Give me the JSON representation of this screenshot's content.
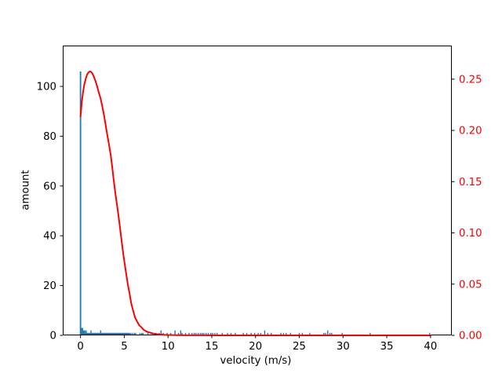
{
  "figure": {
    "background": "#ffffff"
  },
  "chart_data": {
    "type": "bar",
    "subtype": "histogram-with-fit-line",
    "title": "",
    "xlabel": "velocity (m/s)",
    "ylabel_left": "amount",
    "ylabel_right": "",
    "grid": false,
    "legend": null,
    "xlim": [
      -2.03,
      42.43
    ],
    "ylim_left": [
      0,
      116.4
    ],
    "ylim_right": [
      0,
      0.2828
    ],
    "xticks": [
      {
        "v": 0,
        "label": "0"
      },
      {
        "v": 5,
        "label": "5"
      },
      {
        "v": 10,
        "label": "10"
      },
      {
        "v": 15,
        "label": "15"
      },
      {
        "v": 20,
        "label": "20"
      },
      {
        "v": 25,
        "label": "25"
      },
      {
        "v": 30,
        "label": "30"
      },
      {
        "v": 35,
        "label": "35"
      },
      {
        "v": 40,
        "label": "40"
      }
    ],
    "yticks_left": [
      {
        "v": 0,
        "label": "0"
      },
      {
        "v": 20,
        "label": "20"
      },
      {
        "v": 40,
        "label": "40"
      },
      {
        "v": 60,
        "label": "60"
      },
      {
        "v": 80,
        "label": "80"
      },
      {
        "v": 100,
        "label": "100"
      }
    ],
    "yticks_right": [
      {
        "v": 0.0,
        "label": "0.00"
      },
      {
        "v": 0.05,
        "label": "0.05"
      },
      {
        "v": 0.1,
        "label": "0.10"
      },
      {
        "v": 0.15,
        "label": "0.15"
      },
      {
        "v": 0.2,
        "label": "0.20"
      },
      {
        "v": 0.25,
        "label": "0.25"
      }
    ],
    "colors": {
      "bars": "#1f77b4",
      "curve": "#ff0000",
      "right_tick_labels": "#ff0000",
      "left_tick_labels": "#000000",
      "spines": "#000000"
    },
    "histogram": {
      "axis": "left",
      "bin_width": 0.125,
      "spike": {
        "x": 0,
        "h": 106
      },
      "band": {
        "start": 0.1,
        "end": 5.6,
        "step": 0.1,
        "h": 1
      },
      "extras": [
        [
          0.12,
          3
        ],
        [
          0.24,
          3
        ],
        [
          0.36,
          2
        ],
        [
          0.5,
          2
        ],
        [
          0.65,
          2
        ],
        [
          1.2,
          2
        ],
        [
          2.3,
          2
        ],
        [
          5.75,
          1
        ],
        [
          5.95,
          1
        ],
        [
          6.15,
          1
        ],
        [
          6.3,
          1
        ],
        [
          6.8,
          1
        ],
        [
          7.0,
          1
        ],
        [
          7.15,
          1
        ],
        [
          7.7,
          1
        ],
        [
          8.2,
          1
        ],
        [
          8.6,
          1
        ],
        [
          9.0,
          1
        ],
        [
          9.2,
          2
        ],
        [
          9.45,
          1
        ],
        [
          9.9,
          1
        ],
        [
          10.3,
          1
        ],
        [
          10.8,
          2
        ],
        [
          11.2,
          1
        ],
        [
          11.45,
          2
        ],
        [
          11.6,
          1
        ],
        [
          12.0,
          1
        ],
        [
          12.4,
          1
        ],
        [
          12.75,
          1
        ],
        [
          13.0,
          1
        ],
        [
          13.2,
          1
        ],
        [
          13.45,
          1
        ],
        [
          13.7,
          1
        ],
        [
          13.9,
          1
        ],
        [
          14.1,
          1
        ],
        [
          14.35,
          1
        ],
        [
          14.6,
          1
        ],
        [
          14.9,
          1
        ],
        [
          15.1,
          1
        ],
        [
          15.35,
          1
        ],
        [
          15.6,
          1
        ],
        [
          16.2,
          1
        ],
        [
          16.8,
          1
        ],
        [
          17.2,
          1
        ],
        [
          17.7,
          1
        ],
        [
          18.6,
          1
        ],
        [
          19.0,
          1
        ],
        [
          19.5,
          1
        ],
        [
          19.9,
          1
        ],
        [
          20.3,
          1
        ],
        [
          20.6,
          1
        ],
        [
          21.05,
          2
        ],
        [
          21.4,
          1
        ],
        [
          21.8,
          1
        ],
        [
          22.9,
          1
        ],
        [
          23.2,
          1
        ],
        [
          23.5,
          1
        ],
        [
          24.0,
          1
        ],
        [
          25.0,
          1
        ],
        [
          25.35,
          1
        ],
        [
          26.2,
          1
        ],
        [
          27.8,
          1
        ],
        [
          28.0,
          1
        ],
        [
          28.25,
          2
        ],
        [
          28.5,
          1
        ],
        [
          28.7,
          1
        ],
        [
          29.9,
          1
        ],
        [
          33.1,
          1
        ],
        [
          39.9,
          1
        ]
      ]
    },
    "curve": {
      "name": "fit-curve",
      "axis": "right",
      "points": [
        [
          0,
          0.2135
        ],
        [
          0.15,
          0.228
        ],
        [
          0.3,
          0.238
        ],
        [
          0.45,
          0.2455
        ],
        [
          0.6,
          0.2505
        ],
        [
          0.75,
          0.2545
        ],
        [
          0.9,
          0.2565
        ],
        [
          1.05,
          0.2575
        ],
        [
          1.2,
          0.2572
        ],
        [
          1.35,
          0.2556
        ],
        [
          1.5,
          0.253
        ],
        [
          1.7,
          0.2485
        ],
        [
          1.9,
          0.243
        ],
        [
          2.1,
          0.2365
        ],
        [
          2.3,
          0.231
        ],
        [
          2.45,
          0.225
        ],
        [
          2.65,
          0.2165
        ],
        [
          2.85,
          0.2065
        ],
        [
          3.05,
          0.196
        ],
        [
          3.25,
          0.1865
        ],
        [
          3.45,
          0.176
        ],
        [
          3.6,
          0.166
        ],
        [
          3.8,
          0.151
        ],
        [
          4.0,
          0.1375
        ],
        [
          4.25,
          0.1225
        ],
        [
          4.5,
          0.106
        ],
        [
          4.7,
          0.092
        ],
        [
          4.9,
          0.0785
        ],
        [
          5.15,
          0.064
        ],
        [
          5.4,
          0.05
        ],
        [
          5.6,
          0.041
        ],
        [
          5.8,
          0.031
        ],
        [
          6.05,
          0.023
        ],
        [
          6.25,
          0.017
        ],
        [
          6.5,
          0.013
        ],
        [
          6.7,
          0.01
        ],
        [
          6.95,
          0.008
        ],
        [
          7.2,
          0.0055
        ],
        [
          7.5,
          0.004
        ],
        [
          7.8,
          0.003
        ],
        [
          8.2,
          0.002
        ],
        [
          8.6,
          0.0013
        ],
        [
          9.0,
          0.0009
        ],
        [
          9.5,
          0.0006
        ],
        [
          10.0,
          0.0004
        ],
        [
          11.0,
          0.0002
        ],
        [
          12.0,
          0.0001
        ],
        [
          14.0,
          0.0001
        ],
        [
          16.0,
          0
        ],
        [
          20.0,
          0
        ],
        [
          25.0,
          0
        ],
        [
          30.0,
          0
        ],
        [
          35.0,
          0
        ],
        [
          40.0,
          0
        ]
      ]
    }
  }
}
